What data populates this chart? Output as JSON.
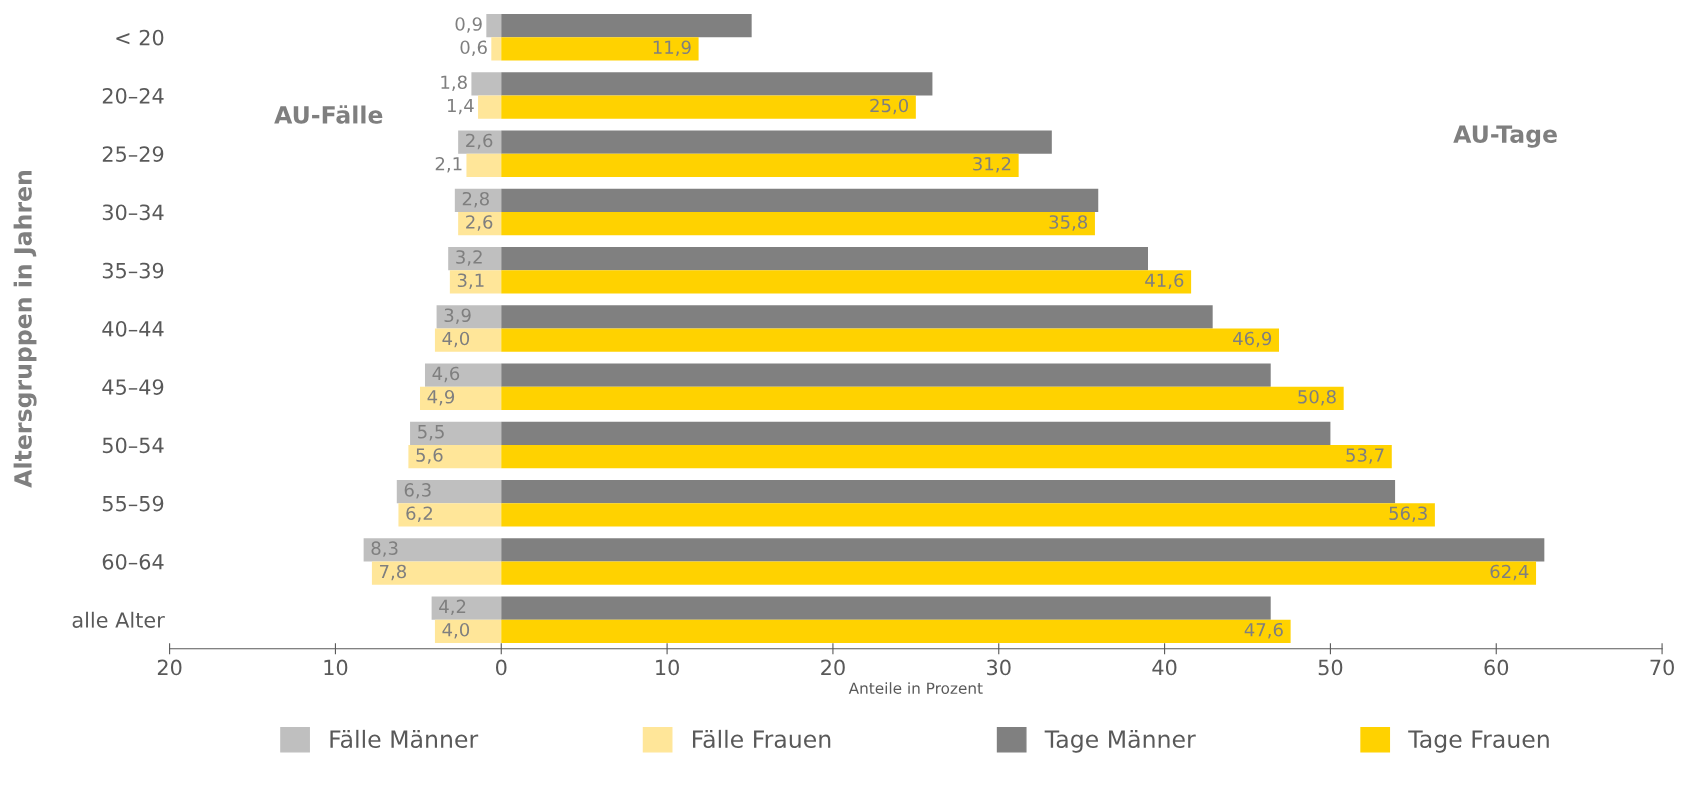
{
  "chart_data": {
    "type": "bar",
    "orientation": "horizontal",
    "ylabel": "Altersgruppen in Jahren",
    "xlabel": "Anteile in Prozent",
    "categories": [
      "< 20",
      "20–24",
      "25–29",
      "30–34",
      "35–39",
      "40–44",
      "45–49",
      "50–54",
      "55–59",
      "60–64",
      "alle Alter"
    ],
    "series": [
      {
        "name": "Fälle Männer",
        "color": "#bfbfbf",
        "values": [
          0.9,
          1.8,
          2.6,
          2.8,
          3.2,
          3.9,
          4.6,
          5.5,
          6.3,
          8.3,
          4.2
        ],
        "base": [
          -0.9,
          -1.8,
          -2.6,
          -2.8,
          -3.2,
          -3.9,
          -4.6,
          -5.5,
          -6.3,
          -8.3,
          -4.2
        ],
        "value_labels": [
          "0,9",
          "1,8",
          "2,6",
          "2,8",
          "3,2",
          "3,9",
          "4,6",
          "5,5",
          "6,3",
          "8,3",
          "4,2"
        ]
      },
      {
        "name": "Fälle Frauen",
        "color": "#ffe699",
        "values": [
          0.6,
          1.4,
          2.1,
          2.6,
          3.1,
          4.0,
          4.9,
          5.6,
          6.2,
          7.8,
          4.0
        ],
        "base": [
          -0.6,
          -1.4,
          -2.1,
          -2.6,
          -3.1,
          -4.0,
          -4.9,
          -5.6,
          -6.2,
          -7.8,
          -4.0
        ],
        "value_labels": [
          "0,6",
          "1,4",
          "2,1",
          "2,6",
          "3,1",
          "4,0",
          "4,9",
          "5,6",
          "6,2",
          "7,8",
          "4,0"
        ]
      },
      {
        "name": "Tage Männer",
        "color": "#808080",
        "values": [
          15.1,
          26.0,
          33.2,
          36.0,
          39.0,
          42.9,
          46.4,
          50.0,
          53.9,
          62.9,
          46.4
        ]
      },
      {
        "name": "Tage Frauen",
        "color": "#ffd200",
        "values": [
          11.9,
          25.0,
          31.2,
          35.8,
          41.6,
          46.9,
          50.8,
          53.7,
          56.3,
          62.4,
          47.6
        ],
        "value_labels": [
          "11,9",
          "25,0",
          "31,2",
          "35,8",
          "41,6",
          "46,9",
          "50,8",
          "53,7",
          "56,3",
          "62,4",
          "47,6"
        ]
      }
    ],
    "xlim": [
      -20,
      70
    ],
    "xticks": [
      {
        "value": -20,
        "label": "20"
      },
      {
        "value": -10,
        "label": "10"
      },
      0,
      10,
      20,
      30,
      40,
      50,
      60,
      70
    ],
    "annotations": [
      "AU-Fälle",
      "AU-Tage"
    ],
    "legend": "bottom",
    "grid": false
  }
}
